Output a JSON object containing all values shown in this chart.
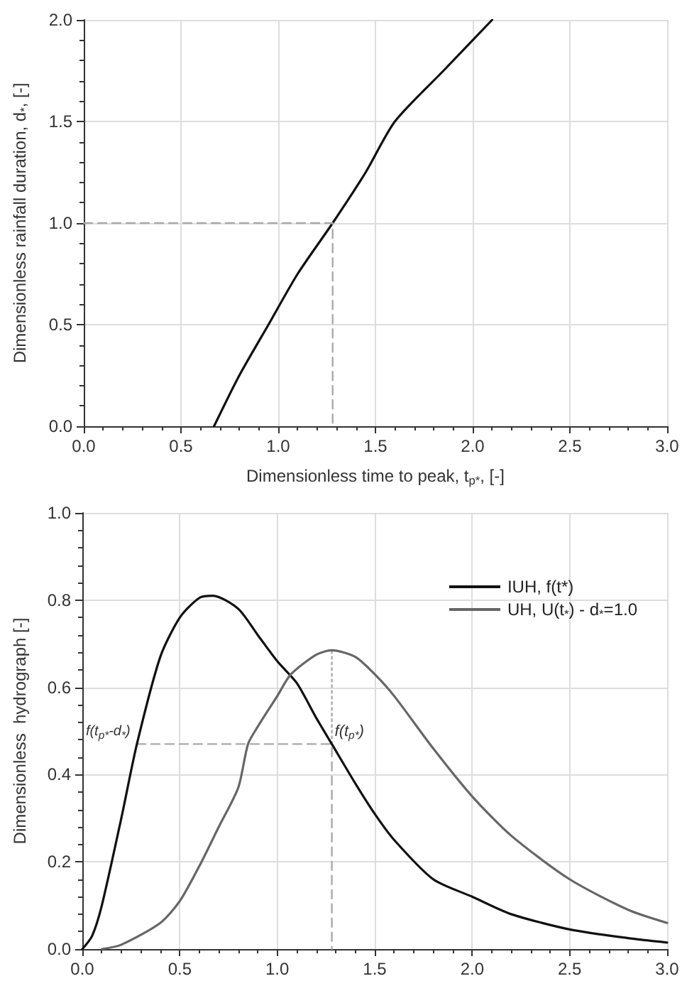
{
  "chart_data": [
    {
      "type": "line",
      "xlabel": "Dimensionless time to peak, t$_{p*}$, [-]",
      "ylabel": "Dimensionless rainfall duration, d$_{*}$, [-]",
      "xlim": [
        0,
        3
      ],
      "xticks": [
        {
          "value": 0,
          "label": "0.0"
        },
        0.5,
        {
          "value": 1,
          "label": "1.0"
        },
        1.5,
        {
          "value": 2,
          "label": "2.0"
        },
        2.5,
        {
          "value": 3,
          "label": "3.0"
        }
      ],
      "ylim": [
        0,
        2
      ],
      "yticks": [
        {
          "value": 0,
          "label": "0.0"
        },
        0.5,
        {
          "value": 1,
          "label": "1.0"
        },
        1.5,
        {
          "value": 2,
          "label": "2.0"
        }
      ],
      "grid": true,
      "marker": "none",
      "series": [
        {
          "color": "#111111",
          "x": [
            0.67,
            0.8,
            0.95,
            1.1,
            1.28,
            1.45,
            1.6,
            1.85,
            2.1
          ],
          "values": [
            0,
            0.25,
            0.5,
            0.75,
            1.0,
            1.25,
            1.5,
            1.75,
            2.0
          ]
        },
        {
          "color": "#aaaaaa",
          "line_style": "dashed",
          "x": [
            0,
            1.28,
            1.28
          ],
          "values": [
            1.0,
            1.0,
            0
          ]
        }
      ]
    },
    {
      "type": "line",
      "ylabel": "Dimensionless  hydrograph [-]",
      "xlim": [
        0,
        3
      ],
      "xticks": [
        {
          "value": 0,
          "label": "0.0"
        },
        0.5,
        {
          "value": 1,
          "label": "1.0"
        },
        1.5,
        {
          "value": 2,
          "label": "2.0"
        },
        2.5,
        {
          "value": 3,
          "label": "3.0"
        }
      ],
      "ylim": [
        0,
        1
      ],
      "yticks": [
        {
          "value": 0,
          "label": "0.0"
        },
        0.2,
        0.4,
        0.6,
        0.8,
        {
          "value": 1,
          "label": "1.0"
        }
      ],
      "grid": true,
      "marker": "none",
      "legend": "top right",
      "annotations": [
        {
          "text": "f(t$_{p*}$-d$_{*}$)",
          "x": 0.28,
          "y": 0.47
        },
        {
          "text": "f(t$_{p*}$)",
          "x": 1.28,
          "y": 0.47
        }
      ],
      "series": [
        {
          "name": "IUH, f(t*)",
          "color": "#111111",
          "x": [
            0,
            0.05,
            0.1,
            0.2,
            0.28,
            0.4,
            0.5,
            0.6,
            0.67,
            0.8,
            0.9,
            1.0,
            1.1,
            1.2,
            1.28,
            1.4,
            1.5,
            1.6,
            1.8,
            2.0,
            2.2,
            2.5,
            2.8,
            3.0
          ],
          "values": [
            0,
            0.03,
            0.1,
            0.3,
            0.47,
            0.67,
            0.76,
            0.805,
            0.81,
            0.78,
            0.72,
            0.66,
            0.61,
            0.53,
            0.47,
            0.38,
            0.31,
            0.25,
            0.16,
            0.12,
            0.08,
            0.045,
            0.025,
            0.015
          ]
        },
        {
          "name": "UH, U(t$_{*}$) - d$_{*}$=1.0",
          "color": "#666666",
          "x": [
            0.1,
            0.2,
            0.4,
            0.5,
            0.6,
            0.7,
            0.8,
            0.85,
            0.9,
            1.0,
            1.07,
            1.2,
            1.28,
            1.4,
            1.5,
            1.6,
            1.8,
            2.0,
            2.2,
            2.5,
            2.8,
            3.0
          ],
          "values": [
            0,
            0.01,
            0.06,
            0.11,
            0.19,
            0.28,
            0.37,
            0.47,
            0.51,
            0.58,
            0.63,
            0.675,
            0.685,
            0.67,
            0.63,
            0.58,
            0.46,
            0.35,
            0.26,
            0.16,
            0.09,
            0.06
          ]
        },
        {
          "color": "#aaaaaa",
          "line_style": "dashed",
          "x": [
            0.28,
            1.28,
            1.28
          ],
          "values": [
            0.47,
            0.47,
            0
          ]
        },
        {
          "color": "#aaaaaa",
          "line_style": "dotted",
          "x": [
            1.28,
            1.28
          ],
          "values": [
            0.47,
            0.685
          ]
        }
      ]
    }
  ]
}
